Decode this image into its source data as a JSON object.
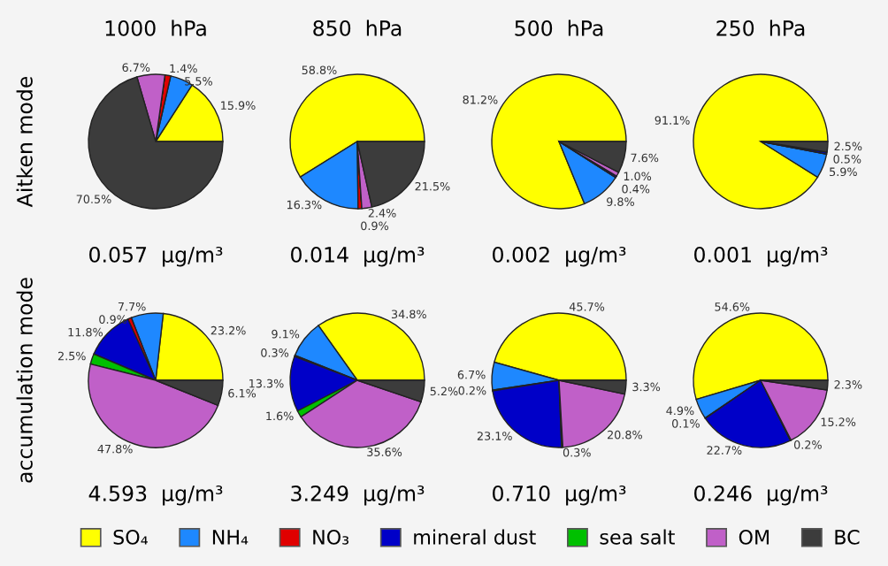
{
  "chart_data": [
    {
      "type": "pie",
      "title": "1000  hPa",
      "ylabel": "Aitken mode",
      "categories": [
        "SO₄",
        "NH₄",
        "NO₃",
        "mineral dust",
        "sea salt",
        "OM",
        "BC"
      ],
      "values": [
        15.9,
        5.5,
        1.4,
        0,
        0,
        6.7,
        70.5
      ],
      "value_labels": [
        "15.9%",
        "5.5%",
        "1.4%",
        null,
        null,
        "6.7%",
        "70.5%"
      ],
      "colors": [
        "#ffff00",
        "#1e88ff",
        "#e00000",
        "#0000c8",
        "#00c000",
        "#c060c8",
        "#3c3c3c"
      ],
      "annotations": [
        "0.057  μg/m³"
      ],
      "legend": "bottom"
    },
    {
      "type": "pie",
      "title": "850  hPa",
      "categories": [
        null,
        null,
        null,
        null,
        null,
        null,
        null
      ],
      "values": [
        58.8,
        16.3,
        0.9,
        0,
        0,
        2.4,
        21.5
      ],
      "value_labels": [
        "58.8%",
        "16.3%",
        "0.9%",
        null,
        null,
        "2.4%",
        "21.5%"
      ],
      "colors": [
        "#ffff00",
        "#1e88ff",
        "#e00000",
        "#0000c8",
        "#00c000",
        "#c060c8",
        "#3c3c3c"
      ],
      "annotations": [
        "0.014  μg/m³"
      ]
    },
    {
      "type": "pie",
      "title": "500  hPa",
      "categories": [
        null,
        null,
        null,
        null,
        null,
        null,
        null
      ],
      "values": [
        81.2,
        9.8,
        0,
        0.4,
        0,
        1.0,
        7.6
      ],
      "value_labels": [
        "81.2%",
        "9.8%",
        null,
        "0.4%",
        null,
        "1.0%",
        "7.6%"
      ],
      "colors": [
        "#ffff00",
        "#1e88ff",
        "#e00000",
        "#0000c8",
        "#00c000",
        "#c060c8",
        "#3c3c3c"
      ],
      "annotations": [
        "0.002  μg/m³"
      ]
    },
    {
      "type": "pie",
      "title": "250  hPa",
      "categories": [
        null,
        null,
        null,
        null,
        null,
        null,
        null
      ],
      "values": [
        91.1,
        5.9,
        0,
        0.5,
        0,
        0,
        2.5
      ],
      "value_labels": [
        "91.1%",
        "5.9%",
        null,
        "0.5%",
        null,
        null,
        "2.5%"
      ],
      "colors": [
        "#ffff00",
        "#1e88ff",
        "#e00000",
        "#0000c8",
        "#00c000",
        "#c060c8",
        "#3c3c3c"
      ],
      "annotations": [
        "0.001  μg/m³"
      ]
    },
    {
      "type": "pie",
      "ylabel": "accumulation mode",
      "categories": [
        null,
        null,
        null,
        null,
        null,
        null,
        null
      ],
      "values": [
        23.2,
        7.7,
        0.9,
        11.8,
        2.5,
        47.8,
        6.1
      ],
      "value_labels": [
        "23.2%",
        "7.7%",
        "0.9%",
        "11.8%",
        "2.5%",
        "47.8%",
        "6.1%"
      ],
      "colors": [
        "#ffff00",
        "#1e88ff",
        "#e00000",
        "#0000c8",
        "#00c000",
        "#c060c8",
        "#3c3c3c"
      ],
      "annotations": [
        "4.593  μg/m³"
      ]
    },
    {
      "type": "pie",
      "categories": [
        null,
        null,
        null,
        null,
        null,
        null,
        null
      ],
      "values": [
        34.8,
        9.1,
        0.3,
        13.3,
        1.6,
        35.6,
        5.2
      ],
      "value_labels": [
        "34.8%",
        "9.1%",
        "0.3%",
        "13.3%",
        "1.6%",
        "35.6%",
        "5.2%"
      ],
      "colors": [
        "#ffff00",
        "#1e88ff",
        "#e00000",
        "#0000c8",
        "#00c000",
        "#c060c8",
        "#3c3c3c"
      ],
      "annotations": [
        "3.249  μg/m³"
      ]
    },
    {
      "type": "pie",
      "categories": [
        null,
        null,
        null,
        null,
        null,
        null,
        null
      ],
      "values": [
        45.7,
        6.7,
        0.2,
        23.1,
        0.3,
        20.8,
        3.3
      ],
      "value_labels": [
        "45.7%",
        "6.7%",
        "0.2%",
        "23.1%",
        "0.3%",
        "20.8%",
        "3.3%"
      ],
      "colors": [
        "#ffff00",
        "#1e88ff",
        "#e00000",
        "#0000c8",
        "#00c000",
        "#c060c8",
        "#3c3c3c"
      ],
      "annotations": [
        "0.710  μg/m³"
      ]
    },
    {
      "type": "pie",
      "categories": [
        null,
        null,
        null,
        null,
        null,
        null,
        null
      ],
      "values": [
        54.6,
        4.9,
        0.1,
        22.7,
        0.2,
        15.2,
        2.3
      ],
      "value_labels": [
        "54.6%",
        "4.9%",
        "0.1%",
        "22.7%",
        "0.2%",
        "15.2%",
        "2.3%"
      ],
      "colors": [
        "#ffff00",
        "#1e88ff",
        "#e00000",
        "#0000c8",
        "#00c000",
        "#c060c8",
        "#3c3c3c"
      ],
      "annotations": [
        "0.246  μg/m³"
      ]
    }
  ]
}
